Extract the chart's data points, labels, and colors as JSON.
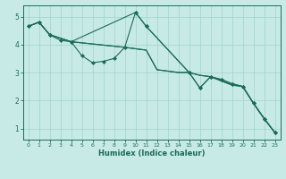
{
  "xlabel": "Humidex (Indice chaleur)",
  "ylabel": "",
  "xlim": [
    -0.5,
    23.5
  ],
  "ylim": [
    0.6,
    5.4
  ],
  "yticks": [
    1,
    2,
    3,
    4,
    5
  ],
  "xticks": [
    0,
    1,
    2,
    3,
    4,
    5,
    6,
    7,
    8,
    9,
    10,
    11,
    12,
    13,
    14,
    15,
    16,
    17,
    18,
    19,
    20,
    21,
    22,
    23
  ],
  "bg_color": "#c8eae6",
  "line_color": "#1a6b5a",
  "grid_color": "#9dd4cc",
  "lines": [
    {
      "x": [
        0,
        1,
        2,
        3,
        4,
        5,
        6,
        7,
        8,
        9,
        10,
        11,
        15,
        16,
        17,
        18,
        19,
        20,
        21,
        22,
        23
      ],
      "y": [
        4.65,
        4.8,
        4.35,
        4.15,
        4.1,
        3.6,
        3.35,
        3.4,
        3.5,
        3.9,
        5.15,
        4.65,
        3.0,
        2.45,
        2.85,
        2.75,
        2.6,
        2.5,
        1.9,
        1.35,
        0.85
      ],
      "has_markers": true
    },
    {
      "x": [
        0,
        1,
        2,
        4,
        9,
        10,
        11,
        12,
        13,
        14,
        15,
        16,
        17,
        18,
        19,
        20,
        21,
        22,
        23
      ],
      "y": [
        4.65,
        4.8,
        4.35,
        4.1,
        3.9,
        3.85,
        3.8,
        3.1,
        3.05,
        3.0,
        3.0,
        2.9,
        2.85,
        2.7,
        2.55,
        2.5,
        1.9,
        1.35,
        0.85
      ],
      "has_markers": false
    },
    {
      "x": [
        0,
        1,
        2,
        4,
        9,
        10,
        11,
        12,
        13,
        14,
        15,
        16,
        17,
        18,
        19,
        20,
        21,
        22,
        23
      ],
      "y": [
        4.65,
        4.8,
        4.35,
        4.1,
        3.9,
        3.85,
        3.8,
        3.1,
        3.05,
        3.0,
        3.0,
        2.9,
        2.85,
        2.7,
        2.55,
        2.5,
        1.9,
        1.35,
        0.85
      ],
      "has_markers": false
    },
    {
      "x": [
        0,
        1,
        2,
        4,
        10,
        11,
        15,
        16,
        17,
        18,
        19,
        20,
        21,
        22,
        23
      ],
      "y": [
        4.65,
        4.8,
        4.35,
        4.1,
        5.15,
        4.65,
        3.0,
        2.45,
        2.85,
        2.75,
        2.6,
        2.5,
        1.9,
        1.35,
        0.85
      ],
      "has_markers": true
    }
  ]
}
